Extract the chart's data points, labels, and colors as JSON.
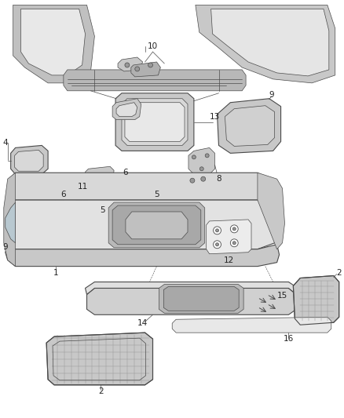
{
  "background_color": "#ffffff",
  "fig_width": 4.38,
  "fig_height": 5.33,
  "dpi": 100,
  "line_color": "#4a4a4a",
  "text_color": "#222222",
  "label_fontsize": 7.5,
  "fill_light": "#e0e0e0",
  "fill_mid": "#c8c8c8",
  "fill_dark": "#b0b0b0",
  "fill_darker": "#989898",
  "fill_white": "#f5f5f5",
  "fill_body": "#d5d5d5"
}
